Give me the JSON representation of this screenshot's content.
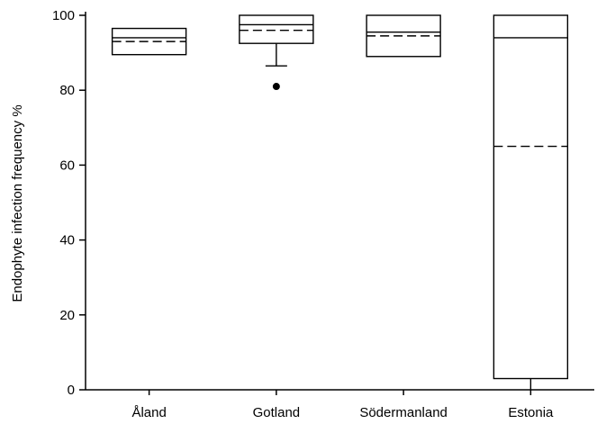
{
  "chart_data": {
    "type": "box",
    "title": "",
    "xlabel": "",
    "ylabel": "Endophyte infection frequency %",
    "ylim": [
      0,
      100
    ],
    "yticks": [
      0,
      20,
      40,
      60,
      80,
      100
    ],
    "grid": false,
    "legend": "none",
    "categories": [
      "Åland",
      "Gotland",
      "Södermanland",
      "Estonia"
    ],
    "boxes": [
      {
        "category": "Åland",
        "whisker_low": 89.5,
        "q1": 89.5,
        "median": 94.0,
        "mean": 93.0,
        "q3": 96.5,
        "whisker_high": 96.5,
        "outliers": []
      },
      {
        "category": "Gotland",
        "whisker_low": 86.5,
        "q1": 92.5,
        "median": 97.5,
        "mean": 96.0,
        "q3": 100,
        "whisker_high": 100,
        "outliers": [
          81.0
        ]
      },
      {
        "category": "Södermanland",
        "whisker_low": 89.0,
        "q1": 89.0,
        "median": 95.5,
        "mean": 94.5,
        "q3": 100,
        "whisker_high": 100,
        "outliers": []
      },
      {
        "category": "Estonia",
        "whisker_low": 0,
        "q1": 3.0,
        "median": 94.0,
        "mean": 65.0,
        "q3": 100,
        "whisker_high": 100,
        "outliers": []
      }
    ],
    "colors": {
      "stroke": "#000000",
      "fill": "#ffffff"
    }
  }
}
